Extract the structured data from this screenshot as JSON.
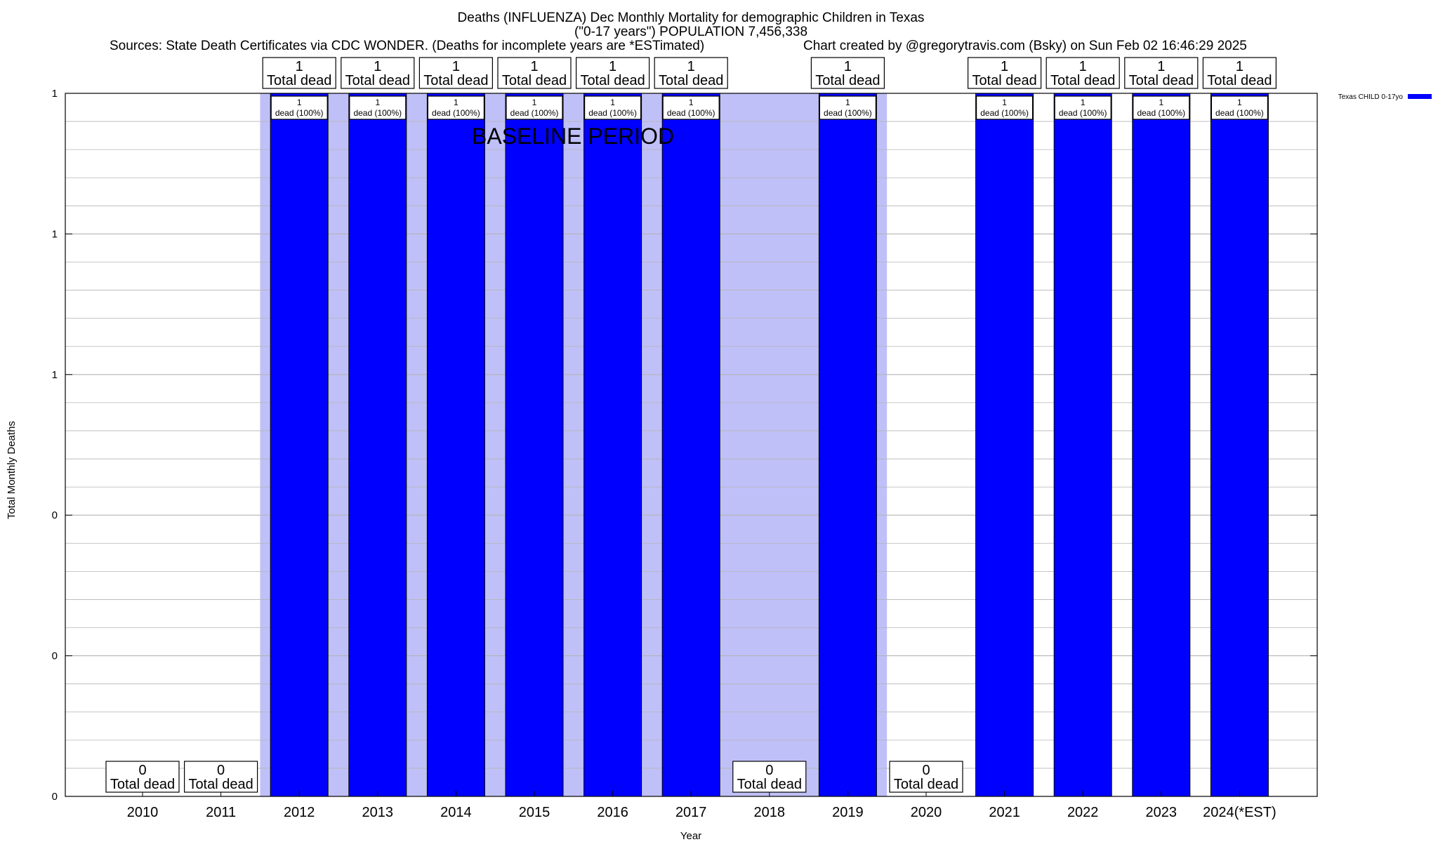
{
  "header": {
    "title_line1": "Deaths (INFLUENZA) Dec Monthly Mortality for demographic Children in Texas",
    "title_line2": "(\"0-17 years\") POPULATION 7,456,338",
    "sources": "Sources: State Death Certificates via CDC WONDER. (Deaths for incomplete years are *ESTimated)",
    "credit": "Chart created by @gregorytravis.com (Bsky) on Sun Feb 02 16:46:29 2025"
  },
  "chart_data": {
    "type": "bar",
    "title": "Deaths (INFLUENZA) Dec Monthly Mortality for demographic Children in Texas",
    "xlabel": "Year",
    "ylabel": "Total Monthly Deaths",
    "categories": [
      "2010",
      "2011",
      "2012",
      "2013",
      "2014",
      "2015",
      "2016",
      "2017",
      "2018",
      "2019",
      "2020",
      "2021",
      "2022",
      "2023",
      "2024(*EST)"
    ],
    "series": [
      {
        "name": "Texas CHILD 0-17yo",
        "color": "#0000ff",
        "values": [
          0,
          0,
          1,
          1,
          1,
          1,
          1,
          1,
          0,
          1,
          0,
          1,
          1,
          1,
          1
        ]
      }
    ],
    "total_labels": [
      "0",
      "0",
      "1",
      "1",
      "1",
      "1",
      "1",
      "1",
      "0",
      "1",
      "0",
      "1",
      "1",
      "1",
      "1"
    ],
    "total_suffix": "Total dead",
    "inner_count_labels": [
      "",
      "",
      "1",
      "1",
      "1",
      "1",
      "1",
      "1",
      "",
      "1",
      "",
      "1",
      "1",
      "1",
      "1"
    ],
    "inner_pct_label": "dead (100%)",
    "ylim": [
      0,
      1
    ],
    "yticks": [
      {
        "value": 0,
        "label": "0"
      },
      {
        "value": 0.2,
        "label": "0"
      },
      {
        "value": 0.4,
        "label": "0"
      },
      {
        "value": 0.6,
        "label": "1"
      },
      {
        "value": 0.8,
        "label": "1"
      },
      {
        "value": 1.0,
        "label": "1"
      }
    ],
    "baseline": {
      "label": "BASELINE PERIOD",
      "start_category": "2012",
      "end_category": "2019",
      "color": "#c0c0f8"
    },
    "grid": true,
    "legend_position": "top-right",
    "bar_color": "#0000ff"
  }
}
